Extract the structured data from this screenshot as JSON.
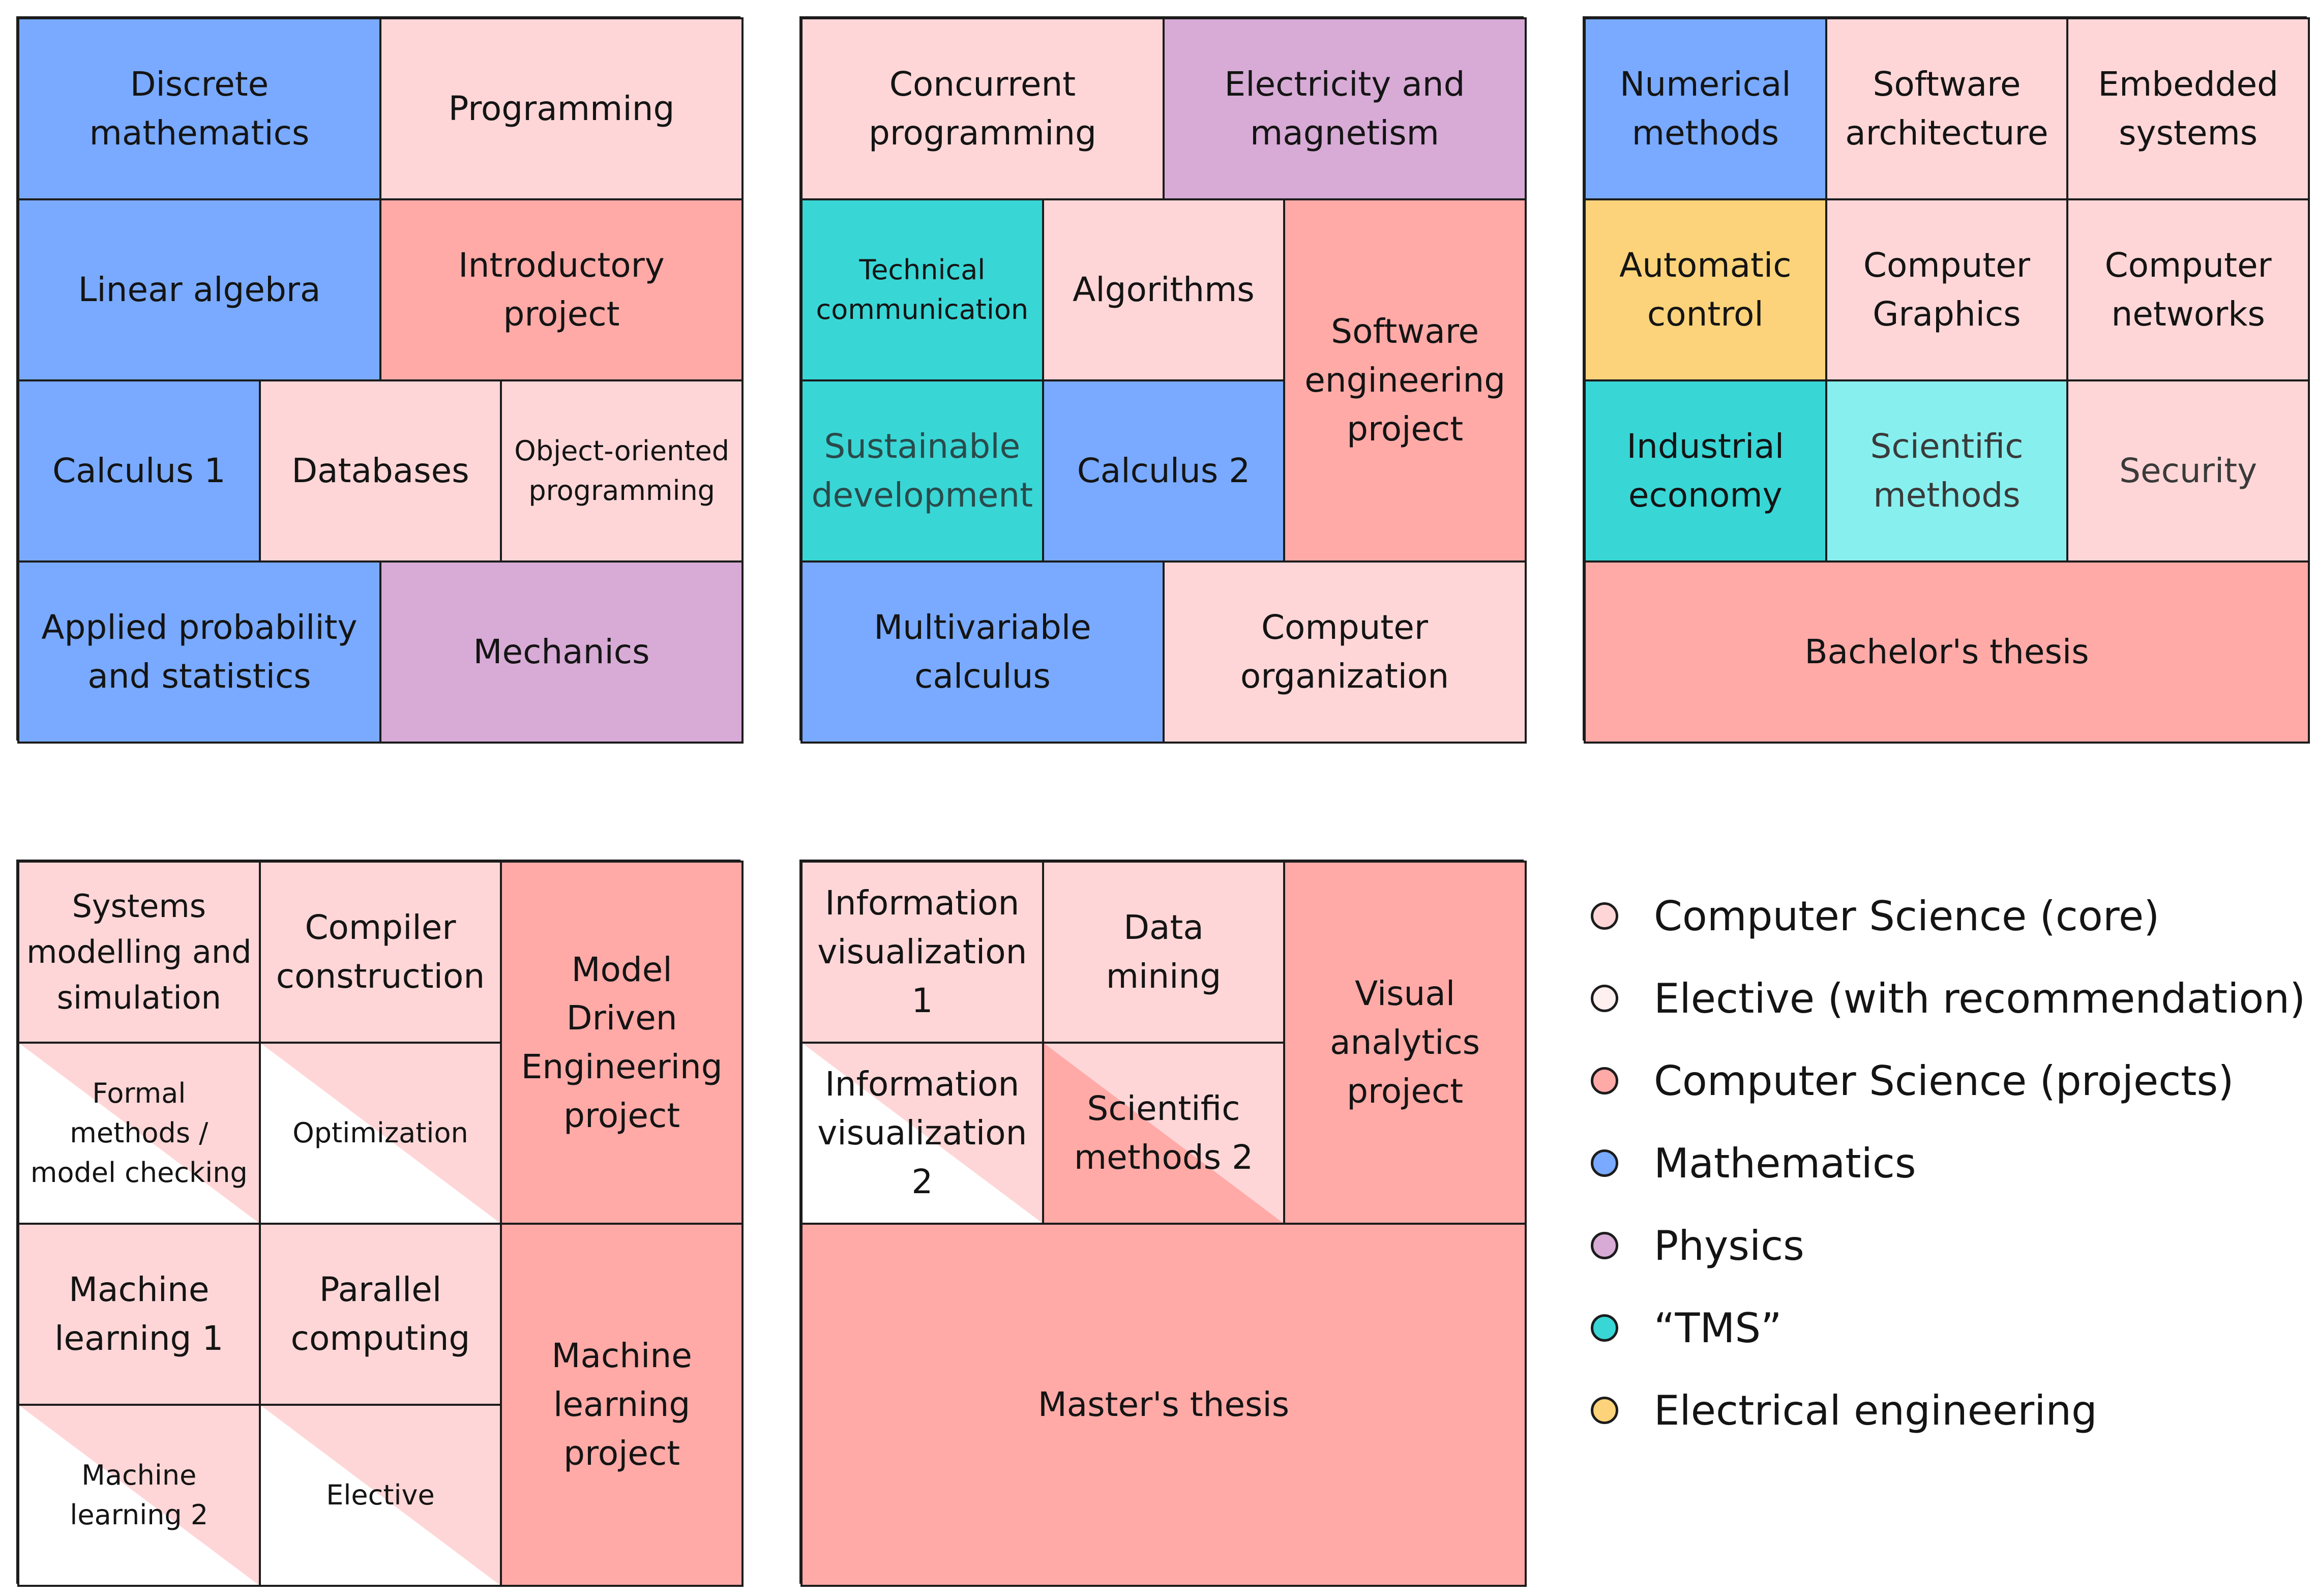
{
  "colors": {
    "cs_core": "#FFD6D7",
    "elective": "#FFF0F0",
    "cs_projects": "#FFAAA7",
    "mathematics": "#79AAFF",
    "physics": "#D7ABD6",
    "tms": "#39D6D6",
    "tms_light": "#88EFEF",
    "electrical": "#FCD37A"
  },
  "cards": [
    {
      "cells": [
        {
          "label": "Discrete\nmathematics",
          "category": "mathematics"
        },
        {
          "label": "Programming",
          "category": "cs_core"
        },
        {
          "label": "Linear algebra",
          "category": "mathematics"
        },
        {
          "label": "Introductory\nproject",
          "category": "cs_projects"
        },
        {
          "label": "Calculus 1",
          "category": "mathematics"
        },
        {
          "label": "Databases",
          "category": "cs_core"
        },
        {
          "label": "Object-oriented\nprogramming",
          "category": "cs_core"
        },
        {
          "label": "Applied probability\nand statistics",
          "category": "mathematics"
        },
        {
          "label": "Mechanics",
          "category": "physics"
        }
      ]
    },
    {
      "cells": [
        {
          "label": "Concurrent\nprogramming",
          "category": "cs_core"
        },
        {
          "label": "Electricity and\nmagnetism",
          "category": "physics"
        },
        {
          "label": "Technical\ncommunication",
          "category": "tms"
        },
        {
          "label": "Algorithms",
          "category": "cs_core"
        },
        {
          "label": "Software\nengineering\nproject",
          "category": "cs_projects"
        },
        {
          "label": "Sustainable\ndevelopment",
          "category": "tms"
        },
        {
          "label": "Calculus 2",
          "category": "mathematics"
        },
        {
          "label": "Multivariable\ncalculus",
          "category": "mathematics"
        },
        {
          "label": "Computer\norganization",
          "category": "cs_core"
        }
      ]
    },
    {
      "cells": [
        {
          "label": "Numerical\nmethods",
          "category": "mathematics"
        },
        {
          "label": "Software\narchitecture",
          "category": "cs_core"
        },
        {
          "label": "Embedded\nsystems",
          "category": "cs_core"
        },
        {
          "label": "Automatic\ncontrol",
          "category": "electrical"
        },
        {
          "label": "Computer\nGraphics",
          "category": "cs_core"
        },
        {
          "label": "Computer\nnetworks",
          "category": "cs_core"
        },
        {
          "label": "Industrial\neconomy",
          "category": "tms"
        },
        {
          "label": "Scientific\nmethods",
          "category": "tms_light"
        },
        {
          "label": "Security",
          "category": "cs_core"
        },
        {
          "label": "Bachelor's thesis",
          "category": "cs_projects"
        }
      ]
    },
    {
      "cells": [
        {
          "label": "Systems\nmodelling and\nsimulation",
          "category": "cs_core"
        },
        {
          "label": "Compiler\nconstruction",
          "category": "cs_core"
        },
        {
          "label": "Model\nDriven\nEngineering\nproject",
          "category": "cs_projects"
        },
        {
          "label": "Formal\nmethods /\nmodel checking",
          "category": "cs_core",
          "split": true
        },
        {
          "label": "Optimization",
          "category": "cs_core",
          "split": true
        },
        {
          "label": "Machine\nlearning 1",
          "category": "cs_core"
        },
        {
          "label": "Parallel\ncomputing",
          "category": "cs_core"
        },
        {
          "label": "Machine\nlearning\nproject",
          "category": "cs_projects"
        },
        {
          "label": "Machine\nlearning 2",
          "category": "cs_core",
          "split": true
        },
        {
          "label": "Elective",
          "category": "cs_core",
          "split": true
        }
      ]
    },
    {
      "cells": [
        {
          "label": "Information\nvisualization\n1",
          "category": "cs_core"
        },
        {
          "label": "Data\nmining",
          "category": "cs_core"
        },
        {
          "label": "Visual\nanalytics\nproject",
          "category": "cs_projects"
        },
        {
          "label": "Information\nvisualization\n2",
          "category": "cs_core",
          "split": true
        },
        {
          "label": "Scientific\nmethods 2",
          "category": "cs_projects",
          "split": true,
          "base": "cs_core"
        },
        {
          "label": "Master's thesis",
          "category": "cs_projects"
        }
      ]
    }
  ],
  "legend": [
    {
      "label": "Computer Science (core)",
      "color": "#FFD6D7"
    },
    {
      "label": "Elective (with recommendation)",
      "color": "#FFF0F0"
    },
    {
      "label": "Computer Science (projects)",
      "color": "#FFAAA7"
    },
    {
      "label": "Mathematics",
      "color": "#79AAFF"
    },
    {
      "label": "Physics",
      "color": "#D7ABD6"
    },
    {
      "label": "“TMS”",
      "color": "#39D6D6"
    },
    {
      "label": "Electrical engineering",
      "color": "#FCD37A"
    }
  ]
}
